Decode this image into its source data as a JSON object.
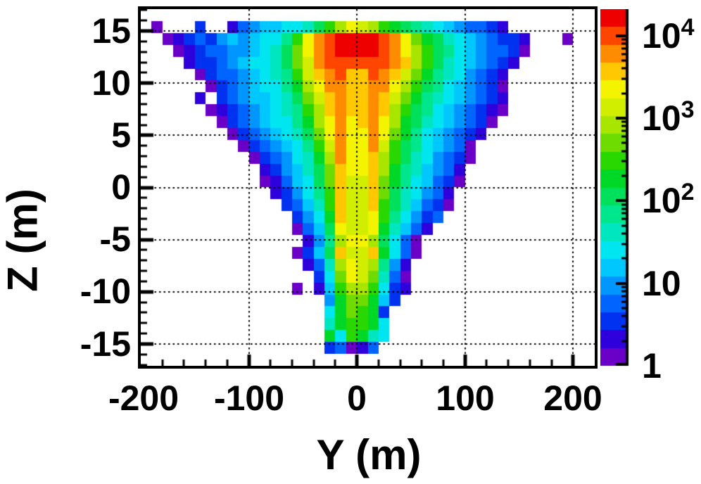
{
  "figure": {
    "background": "#ffffff",
    "frame_color": "#000000"
  },
  "axes": {
    "x": {
      "title": "Y (m)",
      "range": [
        -200,
        220
      ],
      "major_ticks": [
        {
          "value": -200,
          "label": "-200"
        },
        {
          "value": -100,
          "label": "-100"
        },
        {
          "value": 0,
          "label": "0"
        },
        {
          "value": 100,
          "label": "100"
        },
        {
          "value": 200,
          "label": "200"
        }
      ],
      "minor_step": 20,
      "gridlines": [
        -100,
        0,
        100,
        200
      ]
    },
    "y": {
      "title": "Z (m)",
      "range": [
        -17.1,
        17.1
      ],
      "major_ticks": [
        {
          "value": 15,
          "label": "15"
        },
        {
          "value": 10,
          "label": "10"
        },
        {
          "value": 5,
          "label": "5"
        },
        {
          "value": 0,
          "label": "0"
        },
        {
          "value": -5,
          "label": "-5"
        },
        {
          "value": -10,
          "label": "-10"
        },
        {
          "value": -15,
          "label": "-15"
        }
      ],
      "minor_step": 1,
      "gridlines": [
        15,
        10,
        5,
        0,
        -5,
        -10,
        -15
      ]
    }
  },
  "colorbar": {
    "scale": "log",
    "range_log10": [
      0,
      4.32
    ],
    "tick_values": [
      1,
      10,
      100,
      1000,
      10000
    ],
    "ticks": [
      {
        "base": "10",
        "exp": "4"
      },
      {
        "base": "10",
        "exp": "3"
      },
      {
        "base": "10",
        "exp": "2"
      },
      {
        "base": "10",
        "exp": ""
      },
      {
        "base": "1",
        "exp": ""
      }
    ],
    "palette": [
      "#6a00c8",
      "#2e00dc",
      "#0032f0",
      "#0064ff",
      "#0096ff",
      "#00c8ff",
      "#00e6f0",
      "#00e6be",
      "#00e68c",
      "#00e05a",
      "#00d828",
      "#28d800",
      "#6edc00",
      "#a8e600",
      "#d2ee00",
      "#f4f400",
      "#ffc800",
      "#ff8c00",
      "#ff4600",
      "#ee0000"
    ]
  },
  "chart_data": {
    "type": "heatmap",
    "xlabel": "Y (m)",
    "ylabel": "Z (m)",
    "x_bins": {
      "start": -200,
      "step": 10,
      "count": 42
    },
    "z_bins": {
      "start": 17.1,
      "step": -1.14,
      "count": 30
    },
    "value_encoding": "each char is one bin: '.' = empty; 'a'..'t' = 20 logarithmic color bands spanning counts 1 to ~2e4 (0.216 decades per band), matching the colorbar palette bottom-to-top",
    "rows_top_to_bottom": [
      "..........................................",
      ".a...c..bdeffgghjlnponlkjihgfeddcb........",
      "..abcdcefefggilprsttttsrpmkjhgfedccb...a..",
      "...abcddeefghjmprsttttsrpnljigfeddca......",
      "....bccdefgghjmorssssssrqnljhgfedcb.......",
      ".....acddefghiloqrsqqsrqomkihgedcb........",
      "......acdefggiknprrqqrrpnljigfedca........",
      ".....b.cdeffghjmoqrqqrqomkihgfedcb........",
      "......abcdefghilnqrqqrqnljigfedcba........",
      ".......acdefggiknprpqrpnkjhgfedca.........",
      "........acdefghjmprpprpmkigfedcb..........",
      ".........acdefgilorpproljigfeda...........",
      "..........acdeghknrppqnljhgedca...........",
      "...........bcefhjmqppqnkihfedb............",
      "...........abdfgjmqooqmkigfdca............",
      "............bcegilqooqmjhgedb.............",
      ".............cdfhlqooqljhfdca.............",
      "..............cegkqoopligecd..............",
      "..............adfjpoopkhfdb...............",
      "...............beinppnjgda................",
      "..............acfjqooqkgda................",
      "...............bdhnponieb.................",
      "................cgmpomhda.................",
      "..............a.bflnnlgcb.................",
      ".................ekmmkfc..................",
      ".................gkmlkc...................",
      ".................hkllkg...................",
      ".................kglkhg...................",
      ".................cdabd....................",
      ".........................................."
    ]
  }
}
